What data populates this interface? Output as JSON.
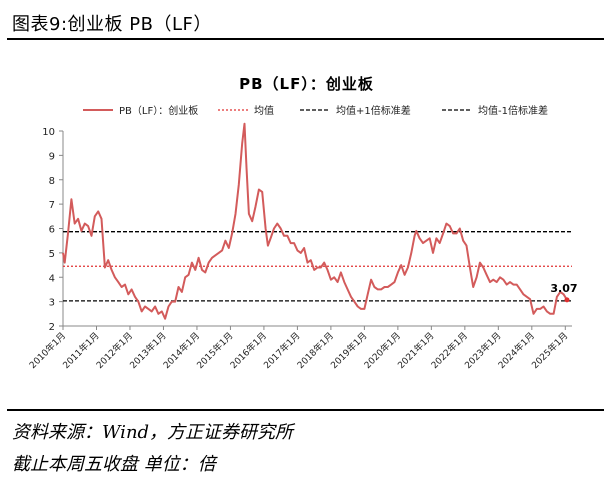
{
  "figure": {
    "title": "图表9:创业板 PB（LF）",
    "source": "资料来源：Wind，方正证券研究所",
    "note": "截止本周五收盘 单位：倍"
  },
  "chart_data": {
    "type": "line",
    "title": "PB（LF）：创业板",
    "legend": [
      "PB（LF）：创业板",
      "均值",
      "均值+1倍标准差",
      "均值-1倍标准差"
    ],
    "legend_position": "top",
    "ylim": [
      2,
      10
    ],
    "yticks": [
      2,
      3,
      4,
      5,
      6,
      7,
      8,
      9,
      10
    ],
    "xticks": [
      "2010年1月",
      "2011年1月",
      "2012年1月",
      "2013年1月",
      "2014年1月",
      "2015年1月",
      "2016年1月",
      "2017年1月",
      "2018年1月",
      "2019年1月",
      "2020年1月",
      "2021年1月",
      "2022年1月",
      "2023年1月",
      "2024年1月",
      "2025年1月"
    ],
    "series": [
      {
        "name": "PB（LF）：创业板",
        "color": "#d35b5b",
        "points": [
          [
            2010.0,
            5.0
          ],
          [
            2010.05,
            4.6
          ],
          [
            2010.15,
            5.8
          ],
          [
            2010.25,
            7.2
          ],
          [
            2010.35,
            6.2
          ],
          [
            2010.45,
            6.4
          ],
          [
            2010.55,
            5.9
          ],
          [
            2010.65,
            6.2
          ],
          [
            2010.75,
            6.1
          ],
          [
            2010.85,
            5.7
          ],
          [
            2010.95,
            6.5
          ],
          [
            2011.05,
            6.7
          ],
          [
            2011.15,
            6.4
          ],
          [
            2011.25,
            4.4
          ],
          [
            2011.35,
            4.7
          ],
          [
            2011.45,
            4.3
          ],
          [
            2011.55,
            4.0
          ],
          [
            2011.65,
            3.8
          ],
          [
            2011.75,
            3.6
          ],
          [
            2011.85,
            3.7
          ],
          [
            2011.95,
            3.3
          ],
          [
            2012.05,
            3.5
          ],
          [
            2012.15,
            3.2
          ],
          [
            2012.25,
            3.0
          ],
          [
            2012.35,
            2.6
          ],
          [
            2012.45,
            2.8
          ],
          [
            2012.55,
            2.7
          ],
          [
            2012.65,
            2.6
          ],
          [
            2012.75,
            2.8
          ],
          [
            2012.85,
            2.5
          ],
          [
            2012.95,
            2.6
          ],
          [
            2013.05,
            2.3
          ],
          [
            2013.15,
            2.8
          ],
          [
            2013.25,
            3.0
          ],
          [
            2013.35,
            3.0
          ],
          [
            2013.45,
            3.6
          ],
          [
            2013.55,
            3.4
          ],
          [
            2013.65,
            4.0
          ],
          [
            2013.75,
            4.1
          ],
          [
            2013.85,
            4.6
          ],
          [
            2013.95,
            4.3
          ],
          [
            2014.05,
            4.8
          ],
          [
            2014.15,
            4.3
          ],
          [
            2014.25,
            4.2
          ],
          [
            2014.35,
            4.6
          ],
          [
            2014.45,
            4.8
          ],
          [
            2014.55,
            4.9
          ],
          [
            2014.65,
            5.0
          ],
          [
            2014.75,
            5.1
          ],
          [
            2014.85,
            5.5
          ],
          [
            2014.95,
            5.2
          ],
          [
            2015.05,
            5.8
          ],
          [
            2015.15,
            6.6
          ],
          [
            2015.25,
            7.8
          ],
          [
            2015.35,
            9.5
          ],
          [
            2015.42,
            10.3
          ],
          [
            2015.48,
            8.5
          ],
          [
            2015.55,
            6.6
          ],
          [
            2015.65,
            6.3
          ],
          [
            2015.75,
            6.9
          ],
          [
            2015.85,
            7.6
          ],
          [
            2015.95,
            7.5
          ],
          [
            2016.05,
            6.0
          ],
          [
            2016.12,
            5.3
          ],
          [
            2016.2,
            5.6
          ],
          [
            2016.3,
            6.0
          ],
          [
            2016.4,
            6.2
          ],
          [
            2016.5,
            6.0
          ],
          [
            2016.6,
            5.7
          ],
          [
            2016.7,
            5.7
          ],
          [
            2016.8,
            5.4
          ],
          [
            2016.9,
            5.4
          ],
          [
            2017.0,
            5.1
          ],
          [
            2017.1,
            5.0
          ],
          [
            2017.2,
            5.2
          ],
          [
            2017.3,
            4.6
          ],
          [
            2017.4,
            4.7
          ],
          [
            2017.5,
            4.3
          ],
          [
            2017.6,
            4.4
          ],
          [
            2017.7,
            4.4
          ],
          [
            2017.8,
            4.6
          ],
          [
            2017.9,
            4.3
          ],
          [
            2018.0,
            3.9
          ],
          [
            2018.1,
            4.0
          ],
          [
            2018.2,
            3.8
          ],
          [
            2018.3,
            4.2
          ],
          [
            2018.4,
            3.8
          ],
          [
            2018.5,
            3.5
          ],
          [
            2018.6,
            3.2
          ],
          [
            2018.7,
            3.0
          ],
          [
            2018.8,
            2.8
          ],
          [
            2018.9,
            2.7
          ],
          [
            2019.0,
            2.7
          ],
          [
            2019.1,
            3.3
          ],
          [
            2019.2,
            3.9
          ],
          [
            2019.3,
            3.6
          ],
          [
            2019.4,
            3.5
          ],
          [
            2019.5,
            3.5
          ],
          [
            2019.6,
            3.6
          ],
          [
            2019.7,
            3.6
          ],
          [
            2019.8,
            3.7
          ],
          [
            2019.9,
            3.8
          ],
          [
            2020.0,
            4.2
          ],
          [
            2020.1,
            4.5
          ],
          [
            2020.2,
            4.1
          ],
          [
            2020.3,
            4.4
          ],
          [
            2020.4,
            5.0
          ],
          [
            2020.5,
            5.7
          ],
          [
            2020.55,
            5.9
          ],
          [
            2020.65,
            5.6
          ],
          [
            2020.75,
            5.4
          ],
          [
            2020.85,
            5.5
          ],
          [
            2020.95,
            5.6
          ],
          [
            2021.05,
            5.0
          ],
          [
            2021.15,
            5.6
          ],
          [
            2021.25,
            5.4
          ],
          [
            2021.35,
            5.8
          ],
          [
            2021.45,
            6.2
          ],
          [
            2021.55,
            6.1
          ],
          [
            2021.65,
            5.8
          ],
          [
            2021.75,
            5.8
          ],
          [
            2021.85,
            6.0
          ],
          [
            2021.95,
            5.5
          ],
          [
            2022.05,
            5.3
          ],
          [
            2022.15,
            4.4
          ],
          [
            2022.25,
            3.6
          ],
          [
            2022.35,
            4.0
          ],
          [
            2022.45,
            4.6
          ],
          [
            2022.55,
            4.4
          ],
          [
            2022.65,
            4.1
          ],
          [
            2022.75,
            3.8
          ],
          [
            2022.85,
            3.9
          ],
          [
            2022.95,
            3.8
          ],
          [
            2023.05,
            4.0
          ],
          [
            2023.15,
            3.9
          ],
          [
            2023.25,
            3.7
          ],
          [
            2023.35,
            3.8
          ],
          [
            2023.45,
            3.7
          ],
          [
            2023.55,
            3.7
          ],
          [
            2023.65,
            3.5
          ],
          [
            2023.75,
            3.3
          ],
          [
            2023.85,
            3.2
          ],
          [
            2023.95,
            3.1
          ],
          [
            2024.05,
            2.5
          ],
          [
            2024.15,
            2.7
          ],
          [
            2024.25,
            2.7
          ],
          [
            2024.35,
            2.8
          ],
          [
            2024.45,
            2.6
          ],
          [
            2024.55,
            2.5
          ],
          [
            2024.65,
            2.5
          ],
          [
            2024.75,
            3.2
          ],
          [
            2024.85,
            3.4
          ],
          [
            2024.95,
            3.3
          ],
          [
            2025.05,
            3.07
          ]
        ]
      },
      {
        "name": "均值",
        "color": "#e03030",
        "dash": "dotted",
        "value": 4.45
      },
      {
        "name": "均值+1倍标准差",
        "color": "#000000",
        "dash": "dashed",
        "value": 5.87
      },
      {
        "name": "均值-1倍标准差",
        "color": "#000000",
        "dash": "dashed",
        "value": 3.03
      }
    ],
    "annotation": {
      "text": "3.07",
      "x": 2025.05,
      "y": 3.07,
      "marker_color": "#e03030"
    }
  }
}
